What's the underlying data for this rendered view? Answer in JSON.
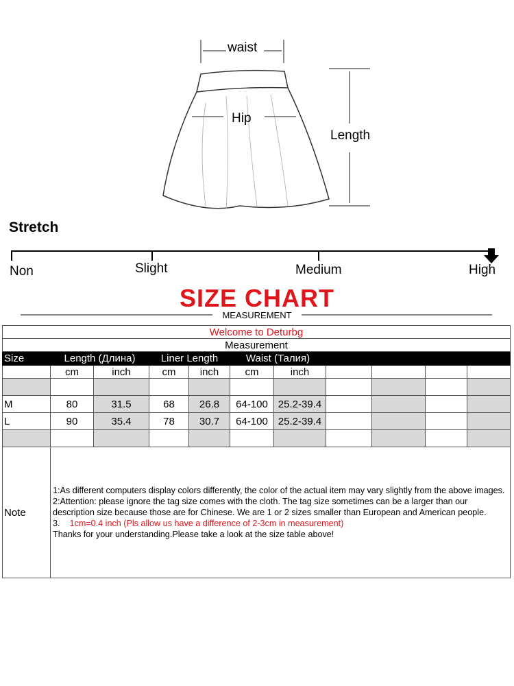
{
  "diagram": {
    "waist": "waist",
    "hip": "Hip",
    "length": "Length"
  },
  "stretch": {
    "title": "Stretch",
    "levels": [
      "Non",
      "Slight",
      "Medium",
      "High"
    ],
    "selected": "High"
  },
  "chart": {
    "title": "SIZE CHART",
    "subtitle": "MEASUREMENT",
    "accent": "#e0141b"
  },
  "table": {
    "welcome": "Welcome to Deturbg",
    "measurement": "Measurement",
    "headers": [
      "Size",
      "Length (Длина)",
      "Liner Length",
      "Waist (Талия)"
    ],
    "units": [
      "cm",
      "inch",
      "cm",
      "inch",
      "cm",
      "inch"
    ],
    "rows": [
      {
        "size": "M",
        "values": [
          "80",
          "31.5",
          "68",
          "26.8",
          "64-100",
          "25.2-39.4"
        ]
      },
      {
        "size": "L",
        "values": [
          "90",
          "35.4",
          "78",
          "30.7",
          "64-100",
          "25.2-39.4"
        ]
      }
    ],
    "note_label": "Note",
    "notes": [
      "1:As different computers display colors differently, the color of the actual item may vary slightly from the above images.",
      "2:Attention: please ignore the tag size comes with the cloth. The tag size sometimes can be a larger than our description size because those are for Chinese. We are 1 or 2 sizes smaller than European and American people.",
      "3.",
      "1cm=0.4 inch (Pls allow us have a difference of 2-3cm in measurement)",
      "Thanks for your understanding.Please take a look at the size table above!"
    ]
  }
}
